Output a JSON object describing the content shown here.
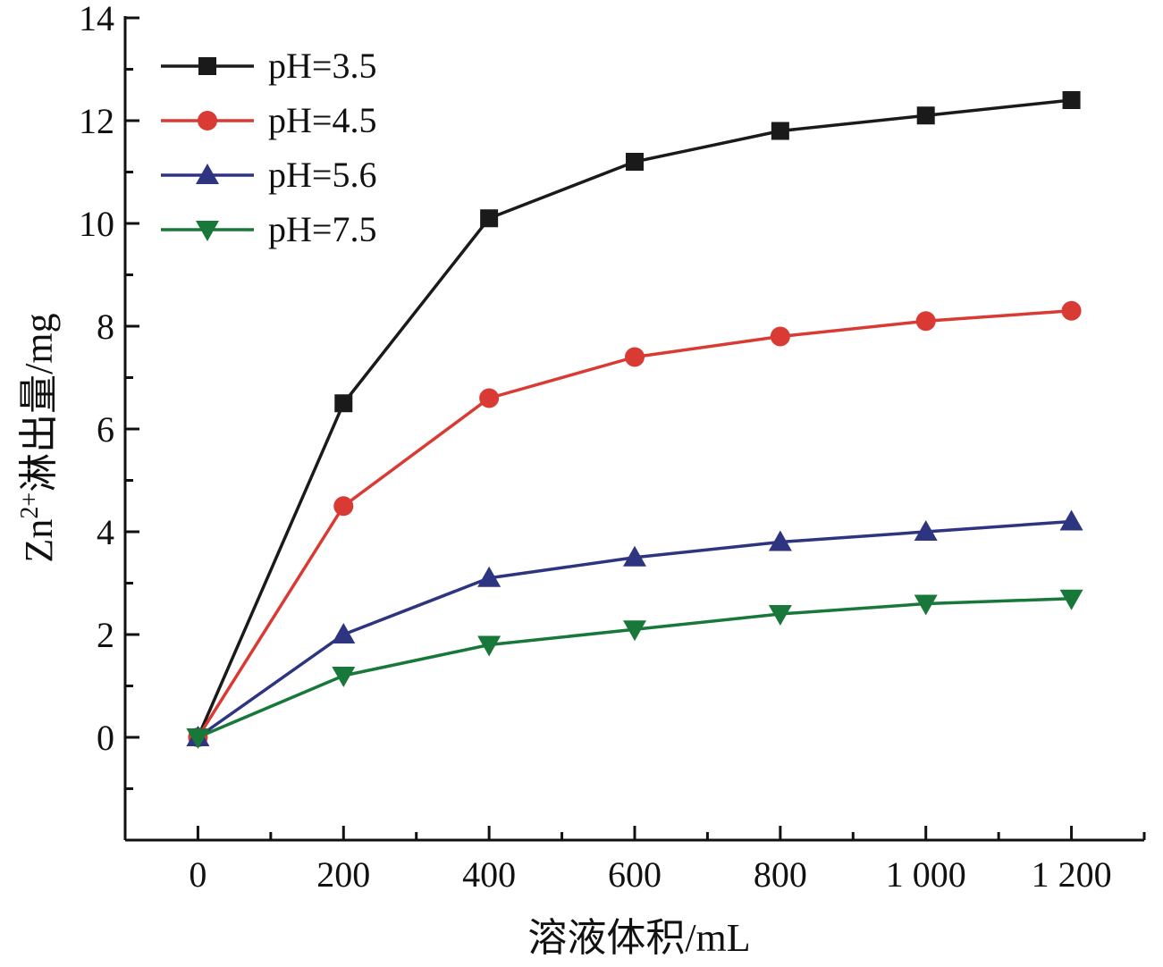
{
  "chart_data": {
    "type": "line",
    "title": "",
    "xlabel": "溶液体积/mL",
    "ylabel": "Zn²⁺淋出量/mg",
    "ylabel_parts": {
      "pre": "Zn",
      "sup": "2+",
      "post": "淋出量/mg"
    },
    "x": [
      0,
      200,
      400,
      600,
      800,
      1000,
      1200
    ],
    "xticks": [
      0,
      200,
      400,
      600,
      800,
      1000,
      1200
    ],
    "xtick_labels": [
      "0",
      "200",
      "400",
      "600",
      "800",
      "1 000",
      "1 200"
    ],
    "yticks": [
      0,
      2,
      4,
      6,
      8,
      10,
      12,
      14
    ],
    "ytick_labels": [
      "0",
      "2",
      "4",
      "6",
      "8",
      "10",
      "12",
      "14"
    ],
    "xlim": [
      -100,
      1300
    ],
    "ylim": [
      -2,
      14
    ],
    "grid": false,
    "legend_position": "top-left",
    "series": [
      {
        "name": "pH=3.5",
        "color": "#1a1a1a",
        "marker": "square",
        "values": [
          0,
          6.5,
          10.1,
          11.2,
          11.8,
          12.1,
          12.4
        ]
      },
      {
        "name": "pH=4.5",
        "color": "#d93a33",
        "marker": "circle",
        "values": [
          0,
          4.5,
          6.6,
          7.4,
          7.8,
          8.1,
          8.3
        ]
      },
      {
        "name": "pH=5.6",
        "color": "#2e3580",
        "marker": "triangle-up",
        "values": [
          0,
          2.0,
          3.1,
          3.5,
          3.8,
          4.0,
          4.2
        ]
      },
      {
        "name": "pH=7.5",
        "color": "#17783a",
        "marker": "triangle-down",
        "values": [
          0,
          1.2,
          1.8,
          2.1,
          2.4,
          2.6,
          2.7
        ]
      }
    ]
  }
}
